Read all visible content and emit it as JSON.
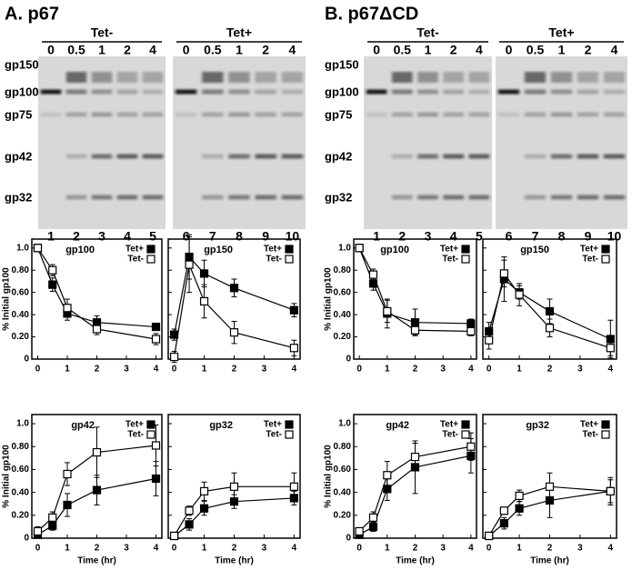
{
  "panels": [
    {
      "title": "A. p67",
      "groups": [
        {
          "label": "Tet-",
          "times": [
            "0",
            "0.5",
            "1",
            "2",
            "4"
          ]
        },
        {
          "label": "Tet+",
          "times": [
            "0",
            "0.5",
            "1",
            "2",
            "4"
          ]
        }
      ],
      "lanes": [
        "1",
        "2",
        "3",
        "4",
        "5",
        "6",
        "7",
        "8",
        "9",
        "10"
      ],
      "bands": [
        "gp150",
        "gp100",
        "gp75",
        "gp42",
        "gp32"
      ]
    },
    {
      "title": "B. p67ΔCD",
      "groups": [
        {
          "label": "Tet-",
          "times": [
            "0",
            "0.5",
            "1",
            "2",
            "4"
          ]
        },
        {
          "label": "Tet+",
          "times": [
            "0",
            "0.5",
            "1",
            "2",
            "4"
          ]
        }
      ],
      "lanes": [
        "1",
        "2",
        "3",
        "4",
        "5",
        "6",
        "7",
        "8",
        "9",
        "10"
      ],
      "bands": [
        "gp150",
        "gp100",
        "gp75",
        "gp42",
        "gp32"
      ]
    }
  ],
  "chart_data": [
    {
      "type": "line",
      "title": "gp100",
      "ylabel": "% Initial gp100",
      "x": [
        0,
        0.5,
        1,
        2,
        4
      ],
      "xlim": [
        -0.2,
        4.2
      ],
      "xticks": [
        0,
        1,
        2,
        3,
        4
      ],
      "ylim": [
        0,
        1.08
      ],
      "yticks": [
        0,
        {
          "value": 0.2,
          "label": "0.20"
        },
        {
          "value": 0.4,
          "label": "0.40"
        },
        {
          "value": 0.6,
          "label": "0.60"
        },
        {
          "value": 0.8,
          "label": "0.80"
        },
        {
          "value": 1,
          "label": "1.0"
        }
      ],
      "legend": "upper right",
      "series": [
        {
          "name": "Tet+",
          "color": "#000000",
          "marker_face": "#000000",
          "values": [
            1.0,
            0.67,
            0.41,
            0.33,
            0.29
          ],
          "errors": [
            0,
            0.06,
            0.06,
            0.06,
            0.03
          ]
        },
        {
          "name": "Tet-",
          "color": "#000000",
          "marker_face": "#ffffff",
          "values": [
            1.0,
            0.8,
            0.46,
            0.27,
            0.18
          ],
          "errors": [
            0,
            0.05,
            0.08,
            0.05,
            0.05
          ]
        }
      ]
    },
    {
      "type": "line",
      "title": "gp150",
      "x": [
        0,
        0.5,
        1,
        2,
        4
      ],
      "xlim": [
        -0.2,
        4.2
      ],
      "xticks": [
        0,
        1,
        2,
        3,
        4
      ],
      "ylim": [
        0,
        1.08
      ],
      "yticks": [
        0,
        0.2,
        0.4,
        0.6,
        0.8,
        1
      ],
      "legend": "upper right",
      "series": [
        {
          "name": "Tet+",
          "color": "#000000",
          "marker_face": "#000000",
          "values": [
            0.22,
            0.92,
            0.77,
            0.64,
            0.44
          ],
          "errors": [
            0.05,
            0.2,
            0.12,
            0.08,
            0.06
          ]
        },
        {
          "name": "Tet-",
          "color": "#000000",
          "marker_face": "#ffffff",
          "values": [
            0.02,
            0.85,
            0.52,
            0.24,
            0.1
          ],
          "errors": [
            0.05,
            0.25,
            0.15,
            0.1,
            0.07
          ]
        }
      ]
    },
    {
      "type": "line",
      "title": "gp42",
      "ylabel": "% Initial gp100",
      "xlabel": "Time (hr)",
      "x": [
        0,
        0.5,
        1,
        2,
        4
      ],
      "xlim": [
        -0.2,
        4.2
      ],
      "xticks": [
        0,
        1,
        2,
        3,
        4
      ],
      "ylim": [
        0,
        1.08
      ],
      "yticks": [
        0,
        {
          "value": 0.2,
          "label": "0.20"
        },
        {
          "value": 0.4,
          "label": "0.40"
        },
        {
          "value": 0.6,
          "label": "0.60"
        },
        {
          "value": 0.8,
          "label": "0.80"
        },
        {
          "value": 1,
          "label": "1.0"
        }
      ],
      "legend": "upper right",
      "series": [
        {
          "name": "Tet+",
          "color": "#000000",
          "marker_face": "#000000",
          "values": [
            0.03,
            0.11,
            0.29,
            0.42,
            0.52
          ],
          "errors": [
            0.02,
            0.04,
            0.1,
            0.13,
            0.15
          ]
        },
        {
          "name": "Tet-",
          "color": "#000000",
          "marker_face": "#ffffff",
          "values": [
            0.06,
            0.18,
            0.56,
            0.75,
            0.81
          ],
          "errors": [
            0.04,
            0.05,
            0.1,
            0.22,
            0.18
          ]
        }
      ]
    },
    {
      "type": "line",
      "title": "gp32",
      "xlabel": "Time (hr)",
      "x": [
        0,
        0.5,
        1,
        2,
        4
      ],
      "xlim": [
        -0.2,
        4.2
      ],
      "xticks": [
        0,
        1,
        2,
        3,
        4
      ],
      "ylim": [
        0,
        1.08
      ],
      "yticks": [
        0,
        0.2,
        0.4,
        0.6,
        0.8,
        1
      ],
      "legend": "upper right",
      "series": [
        {
          "name": "Tet+",
          "color": "#000000",
          "marker_face": "#000000",
          "values": [
            0.02,
            0.12,
            0.26,
            0.32,
            0.35
          ],
          "errors": [
            0.01,
            0.05,
            0.06,
            0.06,
            0.06
          ]
        },
        {
          "name": "Tet-",
          "color": "#000000",
          "marker_face": "#ffffff",
          "values": [
            0.02,
            0.24,
            0.41,
            0.45,
            0.45
          ],
          "errors": [
            0.01,
            0.04,
            0.08,
            0.12,
            0.12
          ]
        }
      ]
    },
    {
      "type": "line",
      "title": "gp100",
      "ylabel": "% Initial gp100",
      "x": [
        0,
        0.5,
        1,
        2,
        4
      ],
      "xlim": [
        -0.2,
        4.2
      ],
      "xticks": [
        0,
        1,
        2,
        3,
        4
      ],
      "ylim": [
        0,
        1.08
      ],
      "yticks": [
        0,
        {
          "value": 0.2,
          "label": "0.20"
        },
        {
          "value": 0.4,
          "label": "0.40"
        },
        {
          "value": 0.6,
          "label": "0.60"
        },
        {
          "value": 0.8,
          "label": "0.80"
        },
        {
          "value": 1,
          "label": "1.0"
        }
      ],
      "legend": "upper right",
      "series": [
        {
          "name": "Tet+",
          "color": "#000000",
          "marker_face": "#000000",
          "values": [
            1.0,
            0.68,
            0.41,
            0.33,
            0.32
          ],
          "errors": [
            0,
            0.06,
            0.13,
            0.12,
            0.04
          ]
        },
        {
          "name": "Tet-",
          "color": "#000000",
          "marker_face": "#ffffff",
          "values": [
            1.0,
            0.76,
            0.43,
            0.26,
            0.25
          ],
          "errors": [
            0,
            0.05,
            0.1,
            0.04,
            0.04
          ]
        }
      ]
    },
    {
      "type": "line",
      "title": "gp150",
      "x": [
        0,
        0.5,
        1,
        2,
        4
      ],
      "xlim": [
        -0.2,
        4.2
      ],
      "xticks": [
        0,
        1,
        2,
        3,
        4
      ],
      "ylim": [
        0,
        1.08
      ],
      "yticks": [
        0,
        0.2,
        0.4,
        0.6,
        0.8,
        1
      ],
      "legend": "upper right",
      "series": [
        {
          "name": "Tet+",
          "color": "#000000",
          "marker_face": "#000000",
          "values": [
            0.25,
            0.72,
            0.6,
            0.43,
            0.18
          ],
          "errors": [
            0.08,
            0.2,
            0.06,
            0.11,
            0.17
          ]
        },
        {
          "name": "Tet-",
          "color": "#000000",
          "marker_face": "#ffffff",
          "values": [
            0.17,
            0.77,
            0.58,
            0.28,
            0.1
          ],
          "errors": [
            0.08,
            0.12,
            0.1,
            0.08,
            0.07
          ]
        }
      ]
    },
    {
      "type": "line",
      "title": "gp42",
      "ylabel": "% Initial gp100",
      "xlabel": "Time (hr)",
      "x": [
        0,
        0.5,
        1,
        2,
        4
      ],
      "xlim": [
        -0.2,
        4.2
      ],
      "xticks": [
        0,
        1,
        2,
        3,
        4
      ],
      "ylim": [
        0,
        1.08
      ],
      "yticks": [
        0,
        {
          "value": 0.2,
          "label": "0.20"
        },
        {
          "value": 0.4,
          "label": "0.40"
        },
        {
          "value": 0.6,
          "label": "0.60"
        },
        {
          "value": 0.8,
          "label": "0.80"
        },
        {
          "value": 1,
          "label": "1.0"
        }
      ],
      "legend": "upper right",
      "series": [
        {
          "name": "Tet+",
          "color": "#000000",
          "marker_face": "#000000",
          "values": [
            0.03,
            0.1,
            0.43,
            0.62,
            0.72
          ],
          "errors": [
            0.02,
            0.04,
            0.1,
            0.23,
            0.15
          ]
        },
        {
          "name": "Tet-",
          "color": "#000000",
          "marker_face": "#ffffff",
          "values": [
            0.06,
            0.18,
            0.55,
            0.71,
            0.8
          ],
          "errors": [
            0.03,
            0.05,
            0.12,
            0.12,
            0.12
          ]
        }
      ]
    },
    {
      "type": "line",
      "title": "gp32",
      "xlabel": "Time (hr)",
      "x": [
        0,
        0.5,
        1,
        2,
        4
      ],
      "xlim": [
        -0.2,
        4.2
      ],
      "xticks": [
        0,
        1,
        2,
        3,
        4
      ],
      "ylim": [
        0,
        1.08
      ],
      "yticks": [
        0,
        0.2,
        0.4,
        0.6,
        0.8,
        1
      ],
      "legend": "upper right",
      "series": [
        {
          "name": "Tet+",
          "color": "#000000",
          "marker_face": "#000000",
          "values": [
            0.02,
            0.13,
            0.26,
            0.33,
            0.41
          ],
          "errors": [
            0.01,
            0.05,
            0.06,
            0.15,
            0.1
          ]
        },
        {
          "name": "Tet-",
          "color": "#000000",
          "marker_face": "#ffffff",
          "values": [
            0.02,
            0.24,
            0.37,
            0.45,
            0.41
          ],
          "errors": [
            0.01,
            0.03,
            0.05,
            0.12,
            0.12
          ]
        }
      ]
    }
  ]
}
